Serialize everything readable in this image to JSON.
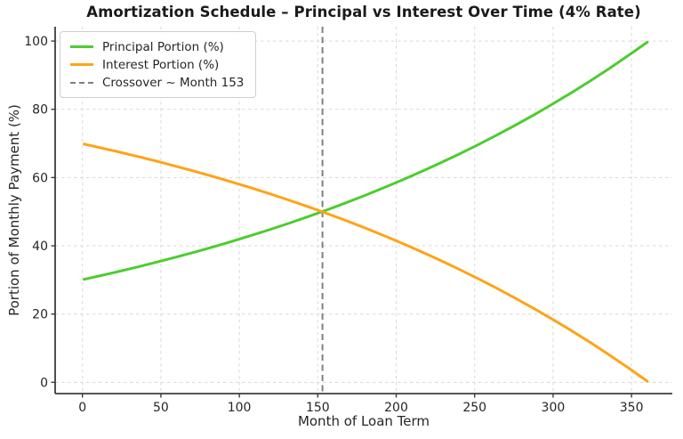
{
  "chart_data": {
    "type": "line",
    "title": "Amortization Schedule – Principal vs Interest Over Time (4% Rate)",
    "xlabel": "Month of Loan Term",
    "ylabel": "Portion of Monthly Payment (%)",
    "xlim": [
      -17.4,
      376
    ],
    "ylim": [
      -3.3,
      104.2
    ],
    "x_ticks": [
      0,
      50,
      100,
      150,
      200,
      250,
      300,
      350
    ],
    "y_ticks": [
      0,
      20,
      40,
      60,
      80,
      100
    ],
    "grid": true,
    "grid_style": "dashed",
    "legend_position": "upper left",
    "x": [
      1,
      12,
      24,
      36,
      48,
      60,
      72,
      84,
      96,
      108,
      120,
      132,
      144,
      153,
      156,
      168,
      180,
      192,
      204,
      216,
      228,
      240,
      252,
      264,
      276,
      288,
      300,
      312,
      324,
      336,
      348,
      360
    ],
    "series": [
      {
        "name": "Principal Portion (%)",
        "color": "#4ccd2f",
        "line_style": "solid",
        "values": [
          30.18,
          31.3,
          32.58,
          33.91,
          35.29,
          36.73,
          38.22,
          39.78,
          41.4,
          43.09,
          44.84,
          46.67,
          48.57,
          50.05,
          50.55,
          52.61,
          54.75,
          56.99,
          59.31,
          61.72,
          64.24,
          66.86,
          69.58,
          72.41,
          75.36,
          78.43,
          81.63,
          84.95,
          88.41,
          92.02,
          95.77,
          99.67
        ]
      },
      {
        "name": "Interest Portion (%)",
        "color": "#ffa318",
        "line_style": "solid",
        "values": [
          69.82,
          68.7,
          67.42,
          66.09,
          64.71,
          63.27,
          61.78,
          60.22,
          58.6,
          56.91,
          55.16,
          53.33,
          51.43,
          49.95,
          49.45,
          47.39,
          45.25,
          43.01,
          40.69,
          38.28,
          35.76,
          33.14,
          30.42,
          27.59,
          24.64,
          21.57,
          18.37,
          15.05,
          11.59,
          7.98,
          4.23,
          0.33
        ]
      }
    ],
    "vline": {
      "label": "Crossover ~ Month 153",
      "x": 153,
      "color": "#7f7f7f",
      "line_style": "dashed"
    },
    "colors": {
      "grid": "#d9d9d9",
      "spine": "#3c3c3c",
      "text": "#262626",
      "legend_border": "#cfcfcf"
    }
  }
}
